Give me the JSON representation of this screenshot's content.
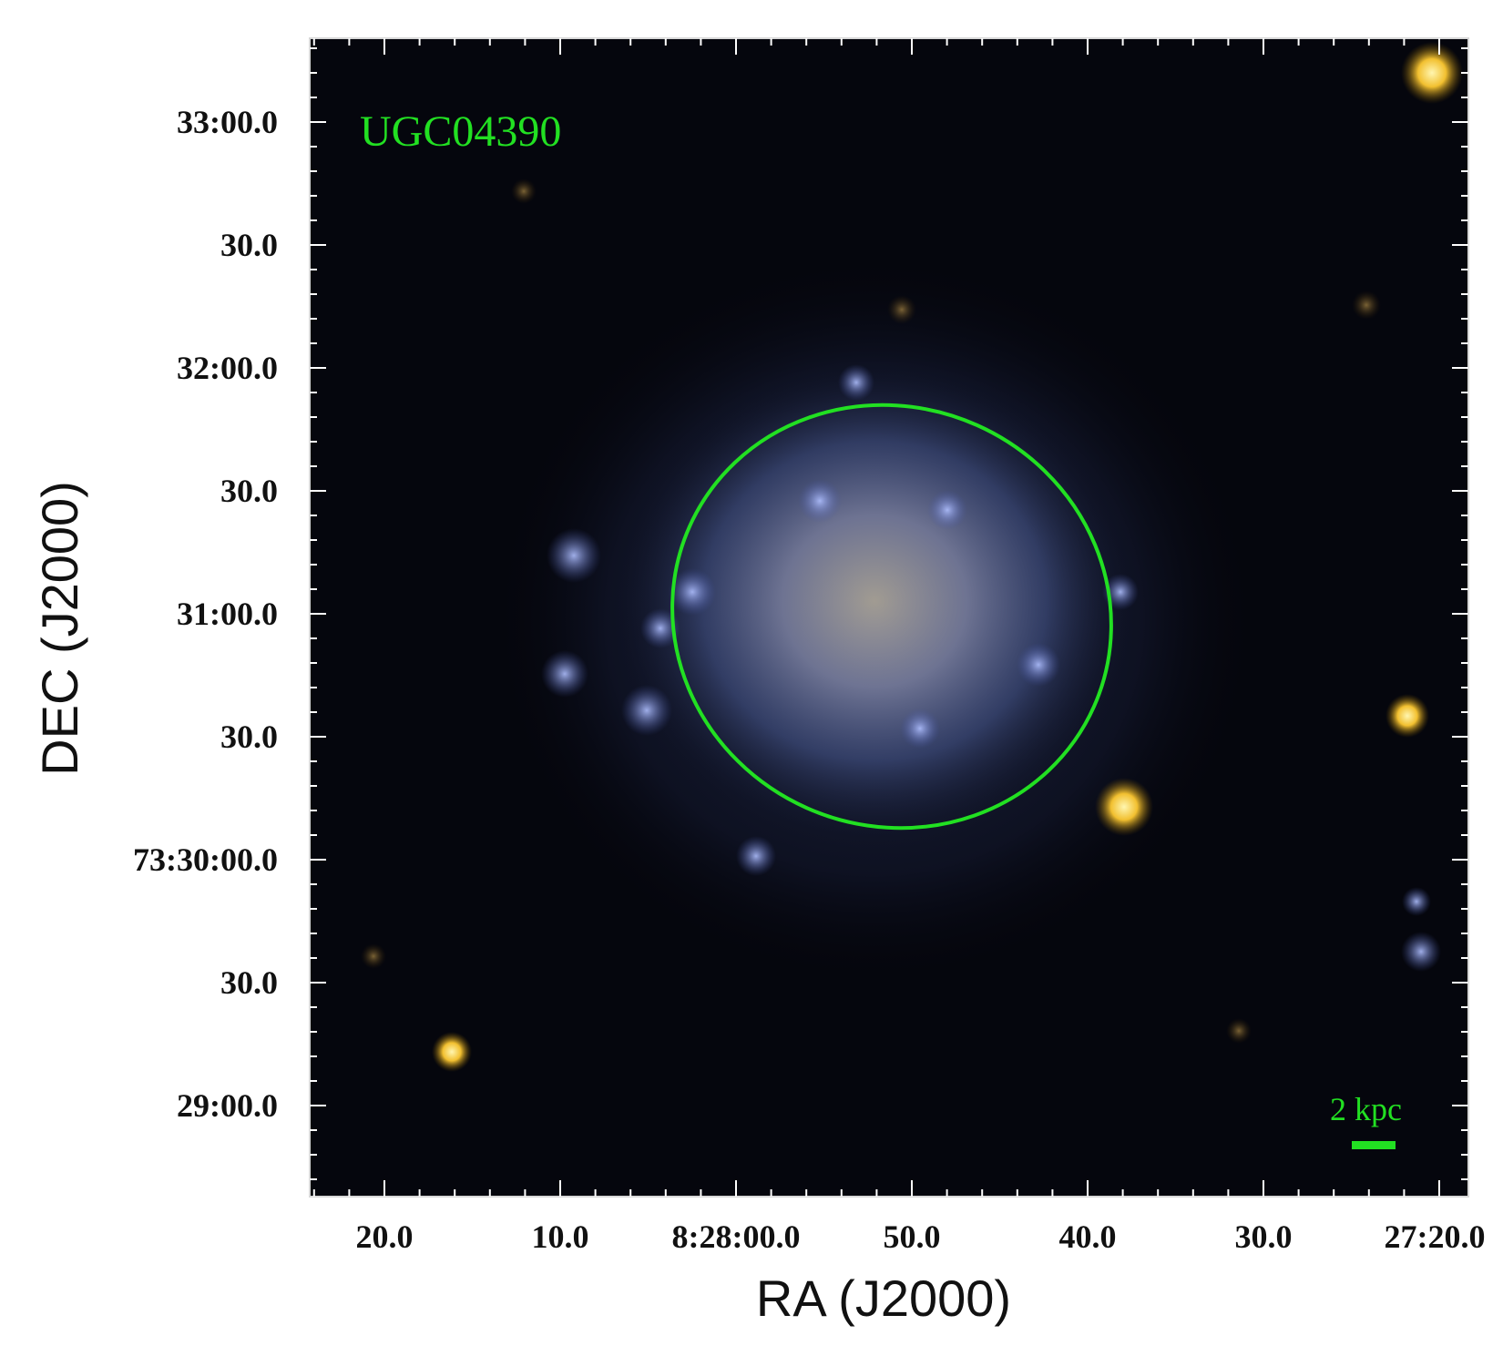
{
  "image": {
    "object_label": "UGC04390",
    "scale_bar_label": "2 kpc",
    "overlay_color": "#22e022",
    "x_axis": {
      "title": "RA (J2000)",
      "tick_labels": [
        "20.0",
        "10.0",
        "8:28:00.0",
        "50.0",
        "40.0",
        "30.0",
        "27:20.0"
      ]
    },
    "y_axis": {
      "title": "DEC (J2000)",
      "tick_labels": [
        "33:00.0",
        "30.0",
        "32:00.0",
        "30.0",
        "31:00.0",
        "30.0",
        "73:30:00.0",
        "30.0",
        "29:00.0"
      ]
    }
  }
}
